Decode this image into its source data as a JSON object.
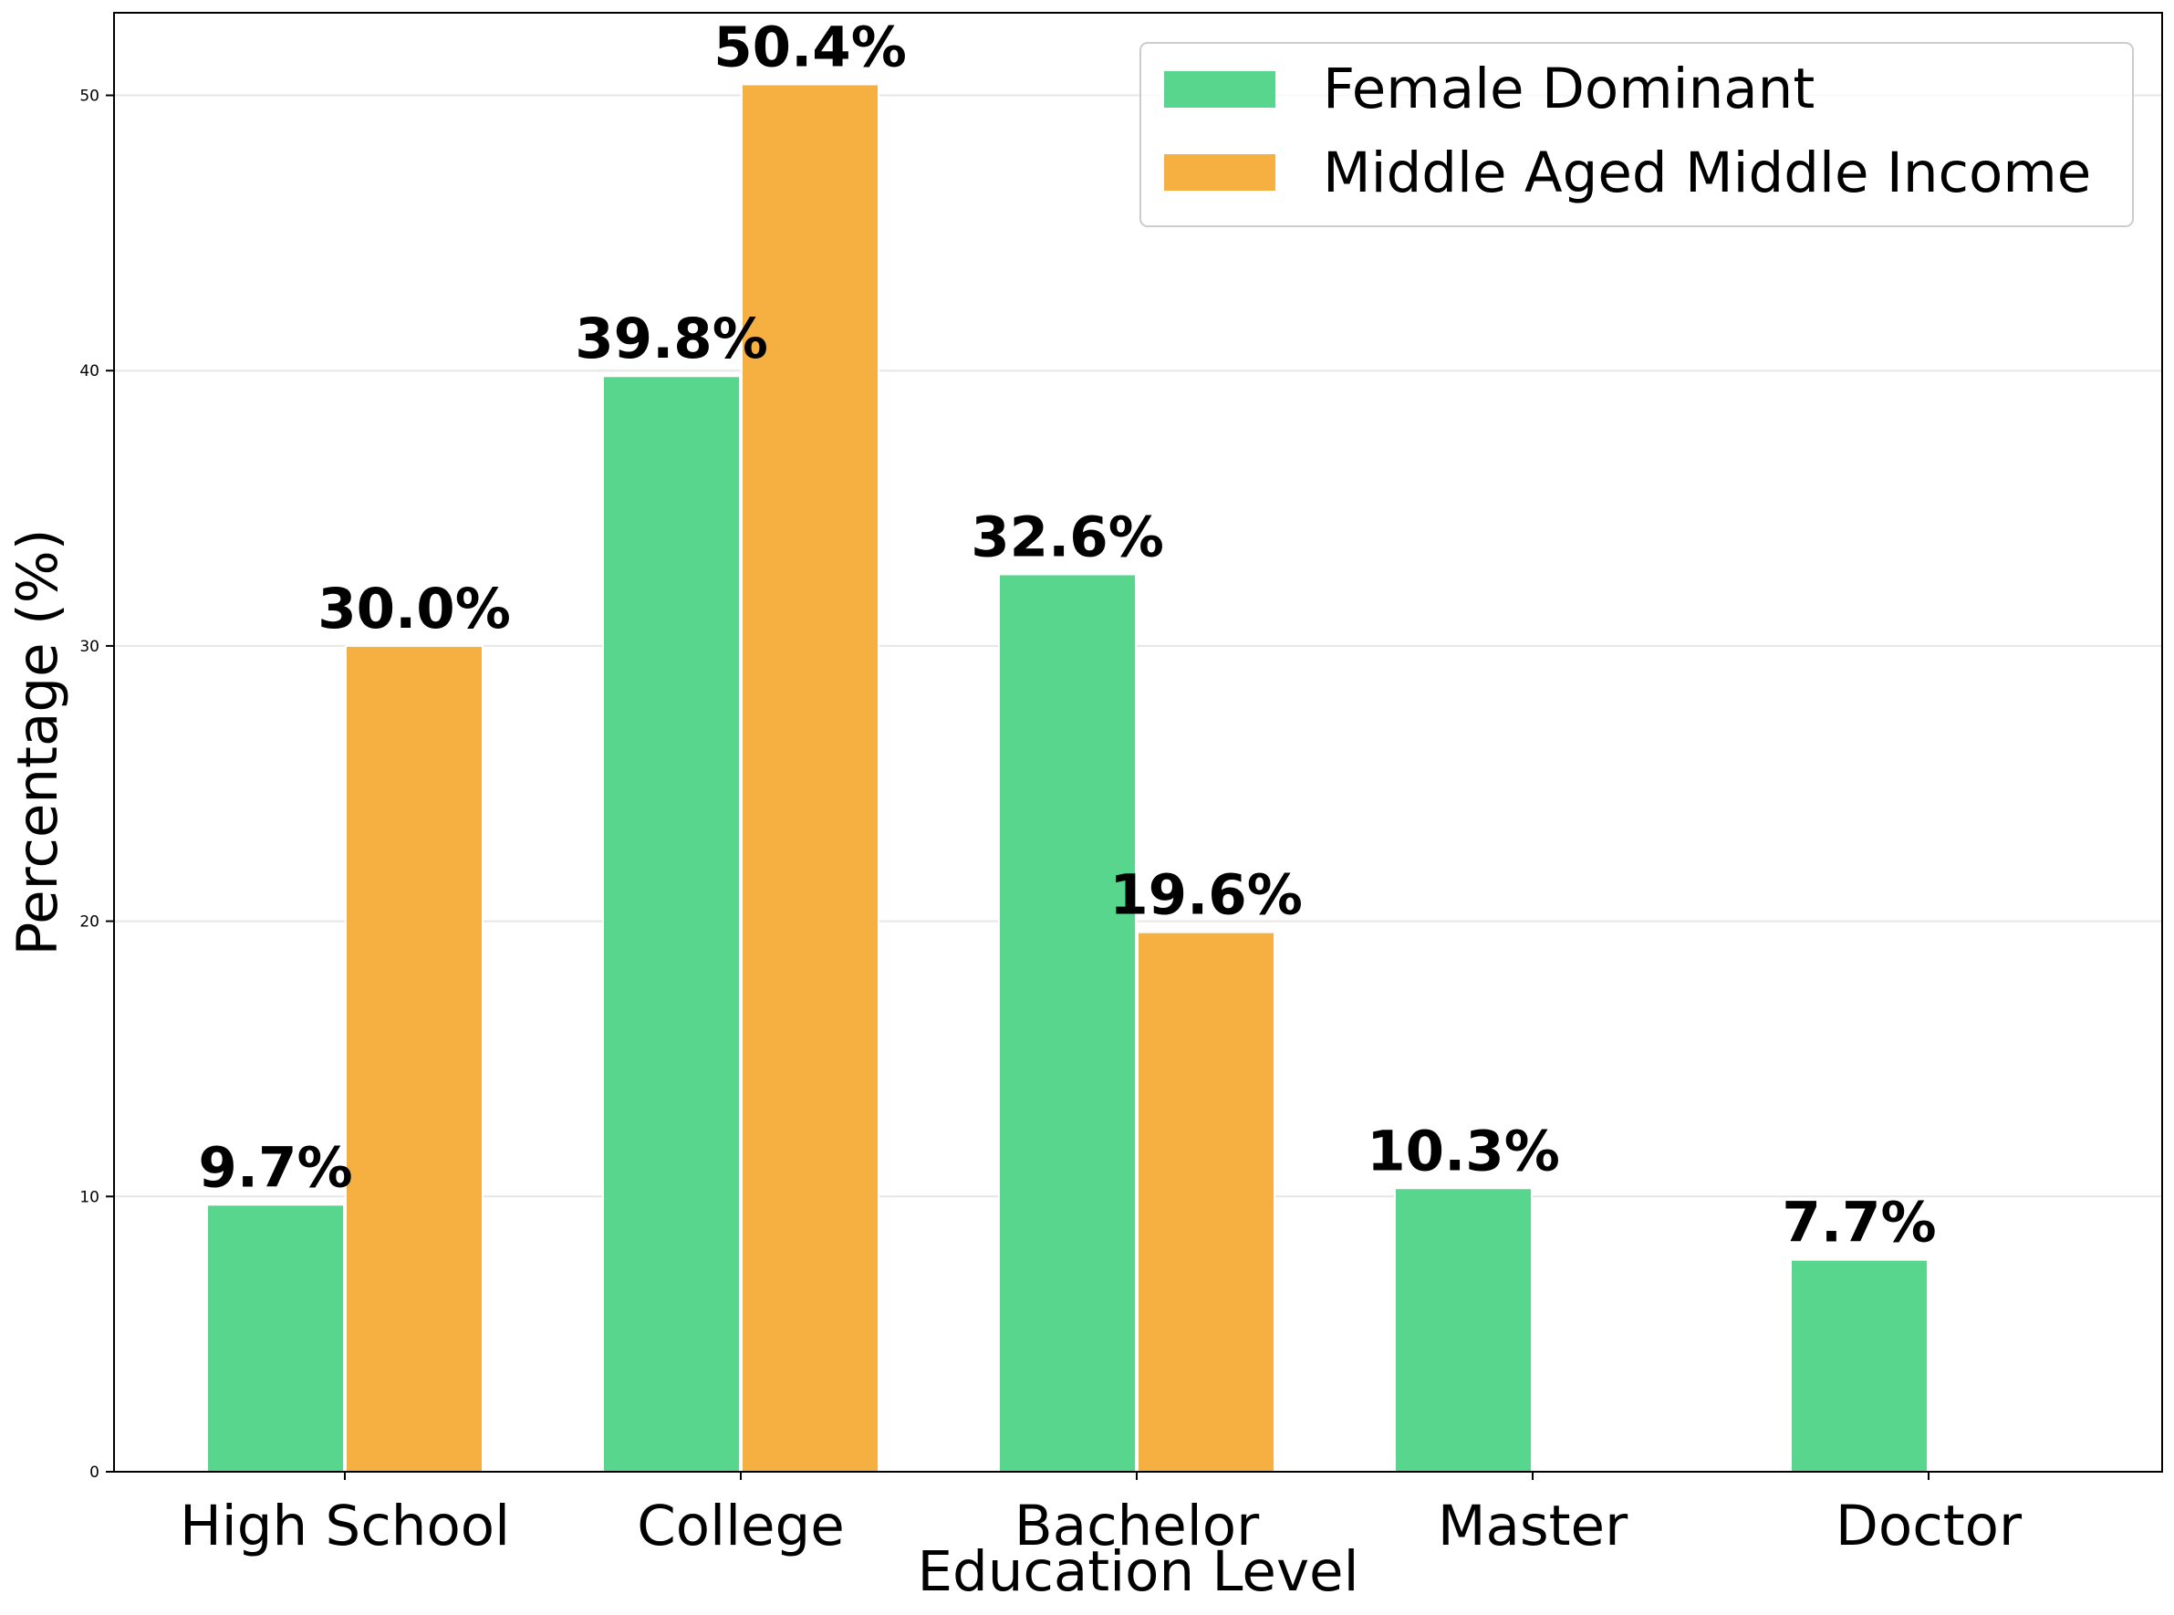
{
  "chart_data": {
    "type": "bar",
    "title": "",
    "xlabel": "Education Level",
    "ylabel": "Percentage (%)",
    "categories": [
      "High School",
      "College",
      "Bachelor",
      "Master",
      "Doctor"
    ],
    "series": [
      {
        "name": "Female Dominant",
        "color": "#58d68d",
        "values": [
          9.7,
          39.8,
          32.6,
          10.3,
          7.7
        ],
        "labels": [
          "9.7%",
          "39.8%",
          "32.6%",
          "10.3%",
          "7.7%"
        ]
      },
      {
        "name": "Middle Aged Middle Income",
        "color": "#f5b041",
        "values": [
          30.0,
          50.4,
          19.6,
          null,
          null
        ],
        "labels": [
          "30.0%",
          "50.4%",
          "19.6%",
          "",
          ""
        ]
      }
    ],
    "ylim": [
      0,
      53
    ],
    "yticks": [
      0,
      10,
      20,
      30,
      40,
      50
    ],
    "ytick_labels": [
      "0",
      "10",
      "20",
      "30",
      "40",
      "50"
    ],
    "grid": "horizontal",
    "legend_position": "top-right"
  }
}
